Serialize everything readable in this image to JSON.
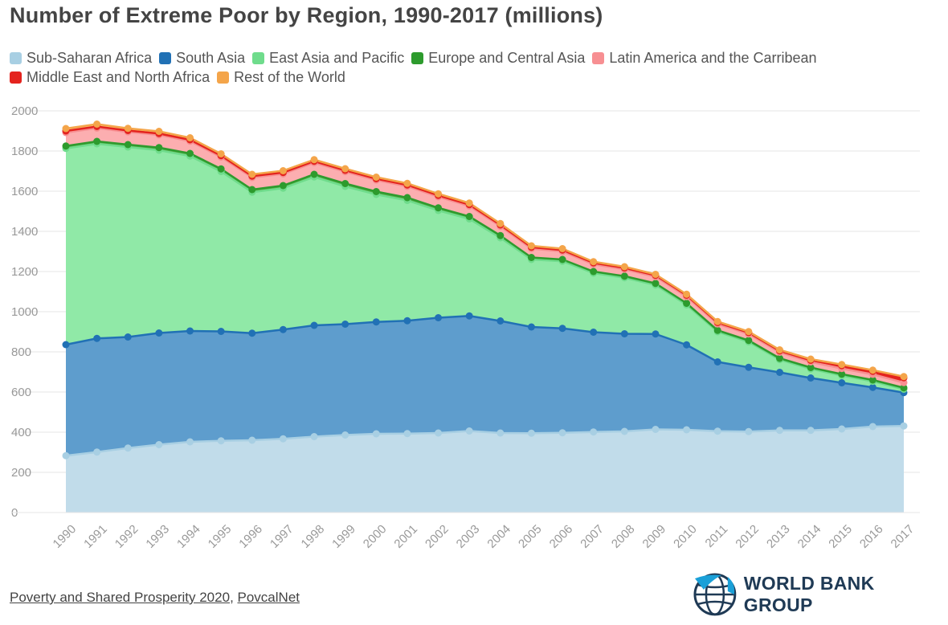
{
  "title": "Number of Extreme Poor by Region, 1990-2017 (millions)",
  "footer": {
    "source_primary": "Poverty and Shared Prosperity 2020",
    "separator": ", ",
    "source_secondary": "PovcalNet"
  },
  "logo": {
    "text": "WORLD BANK GROUP",
    "icon": "globe-icon"
  },
  "chart_data": {
    "type": "area",
    "stacked": true,
    "title": "Number of Extreme Poor by Region, 1990-2017 (millions)",
    "xlabel": "",
    "ylabel": "",
    "ylim": [
      0,
      2000
    ],
    "yticks": [
      0,
      200,
      400,
      600,
      800,
      1000,
      1200,
      1400,
      1600,
      1800,
      2000
    ],
    "grid": true,
    "legend_position": "top",
    "categories": [
      "1990",
      "1991",
      "1992",
      "1993",
      "1994",
      "1995",
      "1996",
      "1997",
      "1998",
      "1999",
      "2000",
      "2001",
      "2002",
      "2003",
      "2004",
      "2005",
      "2006",
      "2007",
      "2008",
      "2009",
      "2010",
      "2011",
      "2012",
      "2013",
      "2014",
      "2015",
      "2016",
      "2017"
    ],
    "series": [
      {
        "name": "Sub-Saharan Africa",
        "fill": "#c1dcea",
        "line": "#a8cfe3",
        "values": [
          283,
          301,
          321,
          338,
          352,
          357,
          360,
          367,
          378,
          386,
          392,
          393,
          396,
          406,
          396,
          395,
          397,
          401,
          404,
          414,
          412,
          405,
          403,
          409,
          409,
          416,
          428,
          431
        ]
      },
      {
        "name": "South Asia",
        "fill": "#5e9dcd",
        "line": "#2171b5",
        "values": [
          553,
          566,
          553,
          556,
          552,
          545,
          533,
          544,
          554,
          552,
          557,
          562,
          574,
          573,
          558,
          529,
          520,
          497,
          486,
          475,
          423,
          345,
          320,
          289,
          261,
          230,
          195,
          166
        ]
      },
      {
        "name": "East Asia and Pacific",
        "fill": "#90e9a7",
        "line": "#6fdc8c",
        "values": [
          977,
          969,
          946,
          910,
          871,
          796,
          702,
          704,
          739,
          686,
          635,
          599,
          534,
          483,
          414,
          336,
          334,
          294,
          279,
          244,
          199,
          150,
          127,
          63,
          45,
          36,
          30,
          17
        ]
      },
      {
        "name": "Europe and Central Asia",
        "fill": "#58ad4a",
        "line": "#2d9b2d",
        "values": [
          12,
          12,
          12,
          13,
          13,
          13,
          13,
          13,
          13,
          14,
          14,
          14,
          13,
          12,
          11,
          10,
          9,
          8,
          8,
          8,
          8,
          7,
          7,
          7,
          7,
          7,
          7,
          7
        ]
      },
      {
        "name": "Latin America and the Carribean",
        "fill": "#fcaeb0",
        "line": "#f78f92",
        "values": [
          67,
          66,
          63,
          63,
          61,
          59,
          60,
          58,
          58,
          59,
          57,
          56,
          55,
          52,
          46,
          44,
          40,
          36,
          34,
          33,
          33,
          32,
          32,
          30,
          28,
          28,
          28,
          26
        ]
      },
      {
        "name": "Middle East and North Africa",
        "fill": "#e4231e",
        "line": "#e4231e",
        "values": [
          8,
          8,
          7,
          7,
          7,
          7,
          7,
          7,
          7,
          7,
          7,
          7,
          7,
          7,
          7,
          7,
          7,
          7,
          7,
          7,
          7,
          7,
          7,
          7,
          8,
          14,
          15,
          24
        ]
      },
      {
        "name": "Rest of the World",
        "fill": "#fbc277",
        "line": "#f4a54a",
        "values": [
          12,
          12,
          11,
          11,
          10,
          9,
          9,
          9,
          8,
          8,
          8,
          8,
          8,
          8,
          7,
          7,
          7,
          6,
          6,
          5,
          5,
          5,
          5,
          5,
          6,
          6,
          6,
          6
        ]
      }
    ]
  }
}
